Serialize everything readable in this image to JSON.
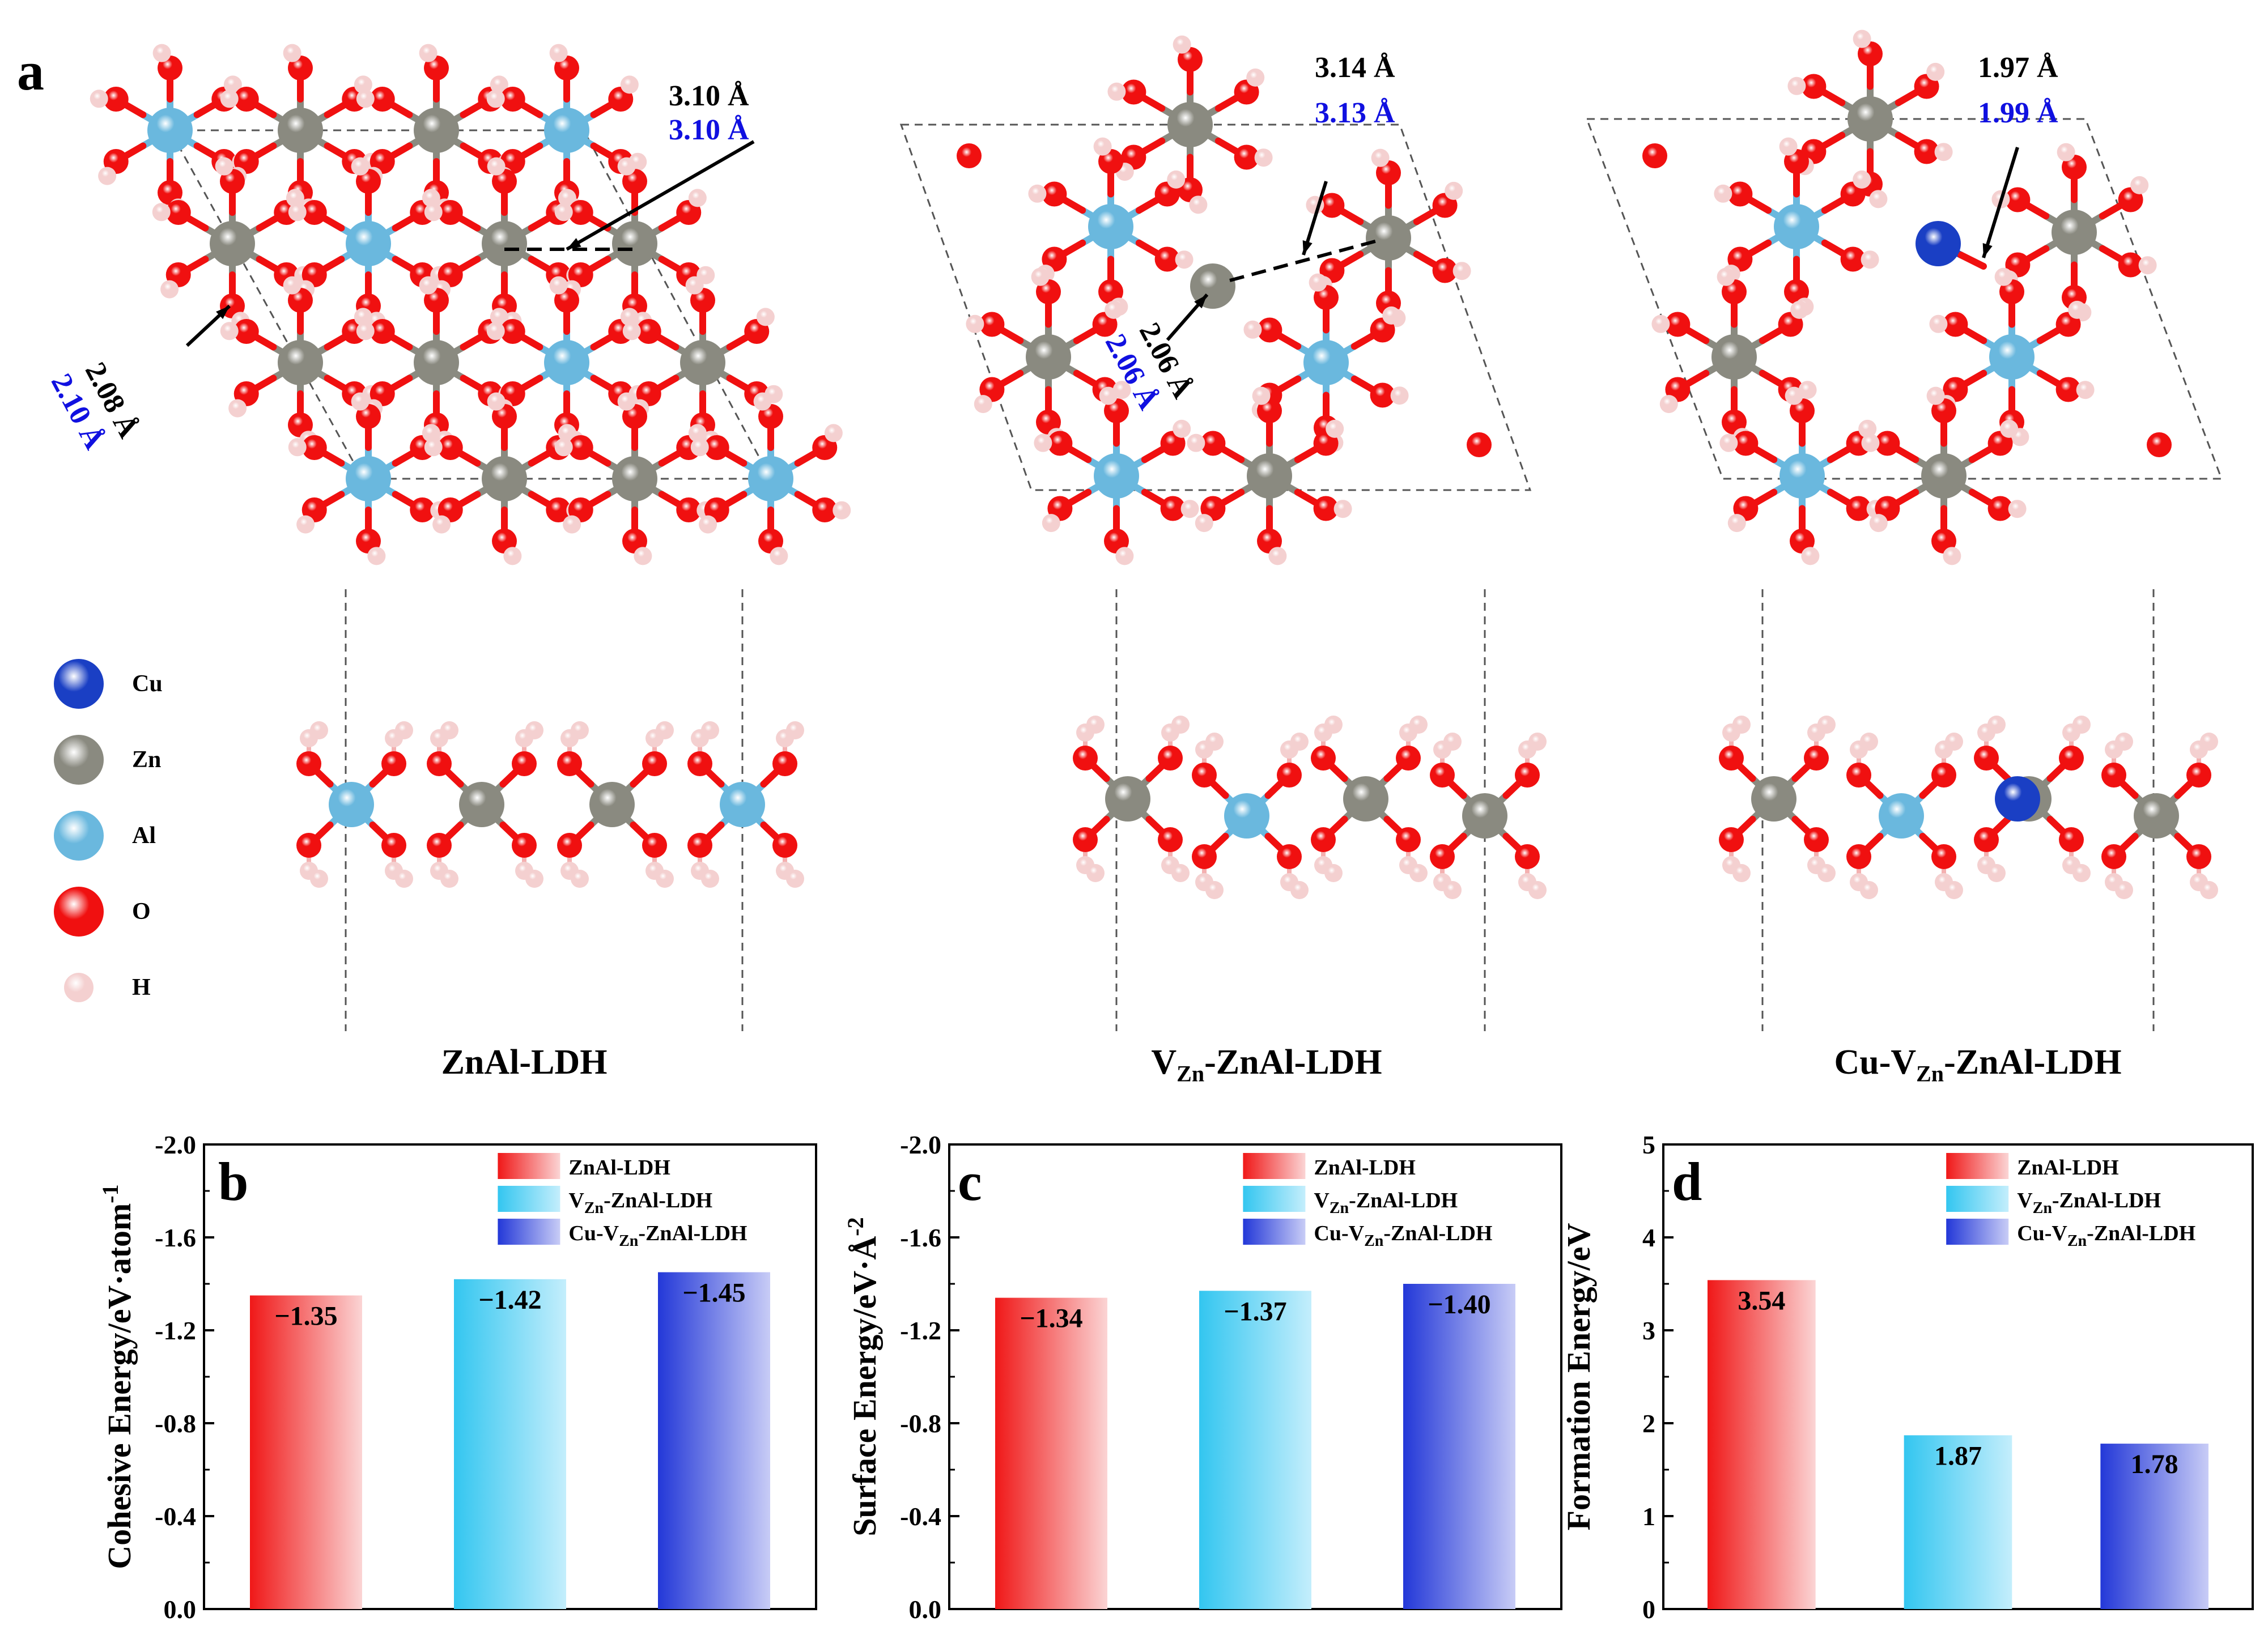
{
  "figure": {
    "panel_a": {
      "label": "a",
      "structures": [
        {
          "title_main": "ZnAl-LDH",
          "title_sub": "",
          "title_rest": ""
        },
        {
          "title_main": "V",
          "title_sub": "Zn",
          "title_rest": "-ZnAl-LDH"
        },
        {
          "title_main": "Cu-V",
          "title_sub": "Zn",
          "title_rest": "-ZnAl-LDH"
        }
      ],
      "distances": {
        "s1_top_black": "3.10 Å",
        "s1_top_blue": "3.10 Å",
        "s1_side_black": "2.08 Å",
        "s1_side_blue": "2.10 Å",
        "s2_top_black": "3.14 Å",
        "s2_top_blue": "3.13 Å",
        "s2_side_black": "2.06 Å",
        "s2_side_blue": "2.06 Å",
        "s3_top_black": "1.97 Å",
        "s3_top_blue": "1.99 Å"
      },
      "atom_legend": [
        {
          "label": "Cu",
          "color": "#1a3fc4"
        },
        {
          "label": "Zn",
          "color": "#8a8a80"
        },
        {
          "label": "Al",
          "color": "#6ab8de"
        },
        {
          "label": "O",
          "color": "#f01010"
        },
        {
          "label": "H",
          "color": "#f4d0d0"
        }
      ]
    }
  },
  "chart_data": [
    {
      "panel": "b",
      "type": "bar",
      "ylabel": "Cohesive  Energy/eV·atom",
      "ylabel_sup": "-1",
      "ylim": [
        0.0,
        -2.0
      ],
      "y_ticks": [
        "0.0",
        "-0.4",
        "-0.8",
        "-1.2",
        "-1.6",
        "-2.0"
      ],
      "categories": [
        "ZnAl-LDH",
        "VZn-ZnAl-LDH",
        "Cu-VZn-ZnAl-LDH"
      ],
      "values": [
        -1.35,
        -1.42,
        -1.45
      ],
      "data_labels": [
        "−1.35",
        "−1.42",
        "−1.45"
      ],
      "legend": [
        {
          "main": "ZnAl-LDH",
          "sub": "",
          "rest": ""
        },
        {
          "main": "V",
          "sub": "Zn",
          "rest": "-ZnAl-LDH"
        },
        {
          "main": "Cu-V",
          "sub": "Zn",
          "rest": "-ZnAl-LDH"
        }
      ]
    },
    {
      "panel": "c",
      "type": "bar",
      "ylabel": "Surface Energy/eV·Å",
      "ylabel_sup": "-2",
      "ylim": [
        0.0,
        -2.0
      ],
      "y_ticks": [
        "0.0",
        "-0.4",
        "-0.8",
        "-1.2",
        "-1.6",
        "-2.0"
      ],
      "categories": [
        "ZnAl-LDH",
        "VZn-ZnAl-LDH",
        "Cu-VZn-ZnAl-LDH"
      ],
      "values": [
        -1.34,
        -1.37,
        -1.4
      ],
      "data_labels": [
        "−1.34",
        "−1.37",
        "−1.40"
      ],
      "legend": [
        {
          "main": "ZnAl-LDH",
          "sub": "",
          "rest": ""
        },
        {
          "main": "V",
          "sub": "Zn",
          "rest": "-ZnAl-LDH"
        },
        {
          "main": "Cu-V",
          "sub": "Zn",
          "rest": "-ZnAl-LDH"
        }
      ]
    },
    {
      "panel": "d",
      "type": "bar",
      "ylabel": "Formation Energy/eV",
      "ylabel_sup": "",
      "ylim": [
        0,
        5
      ],
      "y_ticks": [
        "0",
        "1",
        "2",
        "3",
        "4",
        "5"
      ],
      "categories": [
        "ZnAl-LDH",
        "VZn-ZnAl-LDH",
        "Cu-VZn-ZnAl-LDH"
      ],
      "values": [
        3.54,
        1.87,
        1.78
      ],
      "data_labels": [
        "3.54",
        "1.87",
        "1.78"
      ],
      "legend": [
        {
          "main": "ZnAl-LDH",
          "sub": "",
          "rest": ""
        },
        {
          "main": "V",
          "sub": "Zn",
          "rest": "-ZnAl-LDH"
        },
        {
          "main": "Cu-V",
          "sub": "Zn",
          "rest": "-ZnAl-LDH"
        }
      ]
    }
  ],
  "colors": {
    "red_dark": "#f01818",
    "red_light": "#fbd4d4",
    "cyan_dark": "#33c6f0",
    "cyan_light": "#c4eefc",
    "blue_dark": "#2338d8",
    "blue_light": "#c8ccf6",
    "dist_blue": "#1010e0"
  }
}
